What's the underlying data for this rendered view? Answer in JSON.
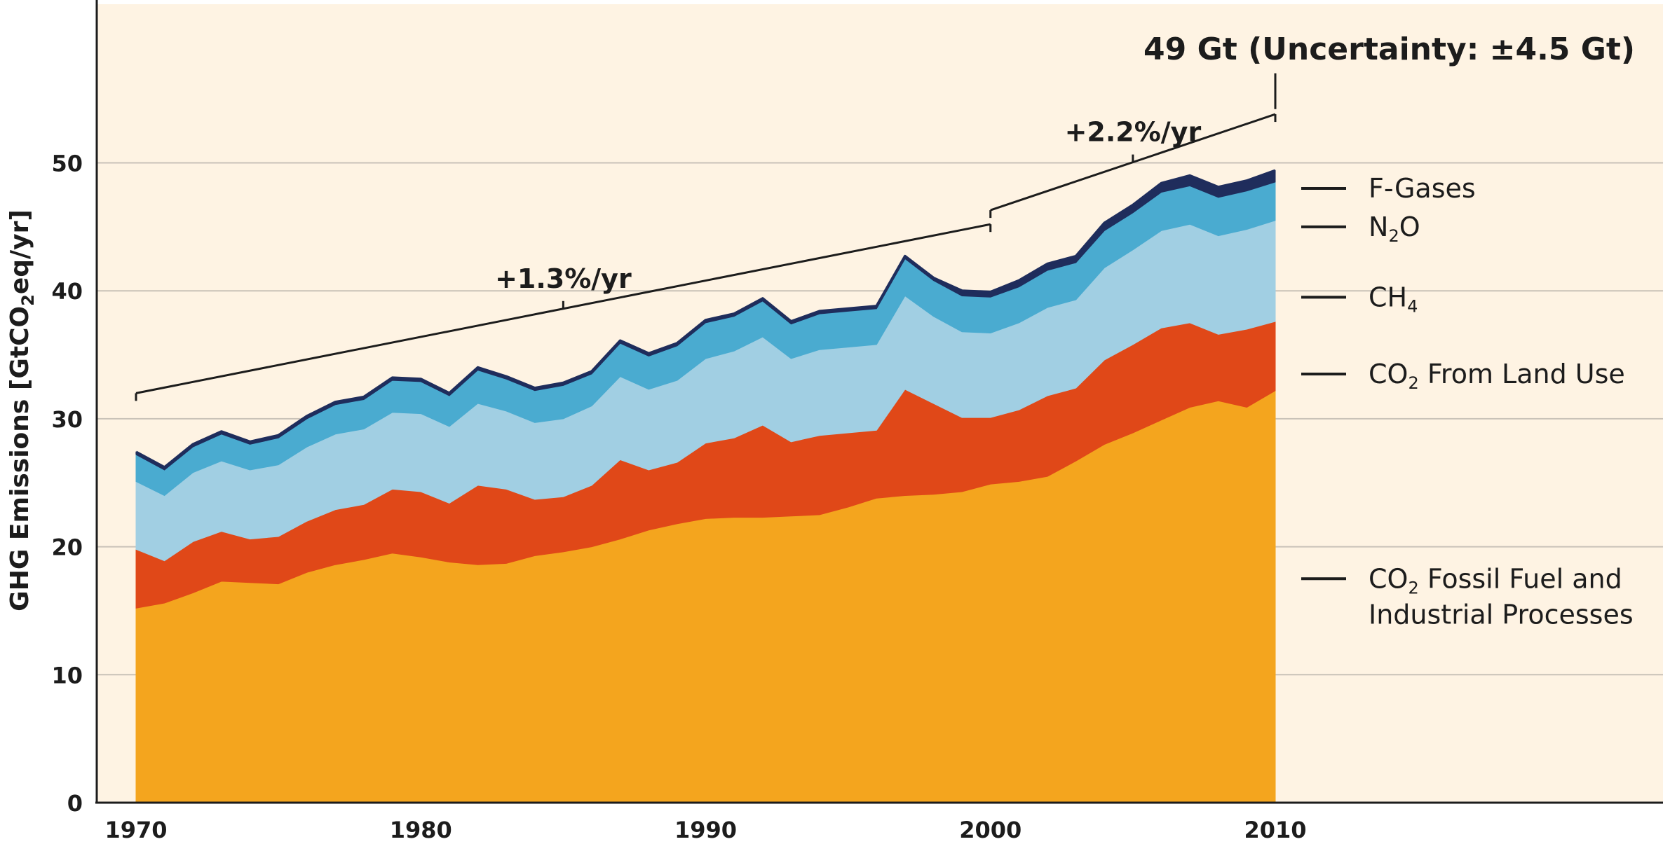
{
  "chart_data": {
    "type": "area",
    "stacked": true,
    "ylabel": "GHG Emissions [GtCO2eq/yr]",
    "ylabel_parts": {
      "before": "GHG Emissions [GtCO",
      "sub": "2",
      "after": "eq/yr]"
    },
    "xlim": [
      1970,
      2010
    ],
    "ylim": [
      0,
      60
    ],
    "x_ticks": [
      1970,
      1980,
      1990,
      2000,
      2010
    ],
    "y_ticks": [
      0,
      10,
      20,
      30,
      40,
      50
    ],
    "grid": "horizontal",
    "legend_placement": "right",
    "x": [
      1970,
      1971,
      1972,
      1973,
      1974,
      1975,
      1976,
      1977,
      1978,
      1979,
      1980,
      1981,
      1982,
      1983,
      1984,
      1985,
      1986,
      1987,
      1988,
      1989,
      1990,
      1991,
      1992,
      1993,
      1994,
      1995,
      1996,
      1997,
      1998,
      1999,
      2000,
      2001,
      2002,
      2003,
      2004,
      2005,
      2006,
      2007,
      2008,
      2009,
      2010
    ],
    "series": [
      {
        "name": "CO2 Fossil Fuel and Industrial Processes",
        "color": "#f4a51e",
        "values": [
          15.2,
          15.6,
          16.4,
          17.3,
          17.2,
          17.1,
          18.0,
          18.6,
          19.0,
          19.5,
          19.2,
          18.8,
          18.6,
          18.7,
          19.3,
          19.6,
          20.0,
          20.6,
          21.3,
          21.8,
          22.2,
          22.3,
          22.3,
          22.4,
          22.5,
          23.1,
          23.8,
          24.0,
          24.1,
          24.3,
          24.9,
          25.1,
          25.5,
          26.7,
          28.0,
          28.9,
          29.9,
          30.9,
          31.4,
          30.9,
          32.2
        ]
      },
      {
        "name": "CO2 From Land Use",
        "color": "#e04818",
        "values": [
          4.6,
          3.3,
          4.0,
          3.9,
          3.4,
          3.7,
          4.0,
          4.3,
          4.3,
          5.0,
          5.1,
          4.6,
          6.2,
          5.8,
          4.4,
          4.3,
          4.8,
          6.2,
          4.7,
          4.8,
          5.9,
          6.2,
          7.2,
          5.8,
          6.2,
          5.8,
          5.3,
          8.3,
          7.1,
          5.8,
          5.2,
          5.6,
          6.3,
          5.7,
          6.6,
          6.9,
          7.2,
          6.6,
          5.2,
          6.1,
          5.4
        ]
      },
      {
        "name": "CH4",
        "color": "#a1cfe3",
        "values": [
          5.3,
          5.1,
          5.4,
          5.5,
          5.4,
          5.6,
          5.8,
          5.9,
          5.9,
          6.0,
          6.1,
          6.0,
          6.4,
          6.1,
          6.0,
          6.1,
          6.2,
          6.5,
          6.3,
          6.4,
          6.6,
          6.8,
          6.9,
          6.5,
          6.7,
          6.7,
          6.7,
          7.3,
          6.8,
          6.7,
          6.6,
          6.8,
          6.9,
          6.9,
          7.2,
          7.4,
          7.6,
          7.7,
          7.7,
          7.8,
          7.9
        ]
      },
      {
        "name": "N2O",
        "color": "#4aabd0",
        "values": [
          2.1,
          2.0,
          2.0,
          2.1,
          2.0,
          2.1,
          2.2,
          2.3,
          2.3,
          2.5,
          2.5,
          2.4,
          2.6,
          2.5,
          2.5,
          2.6,
          2.5,
          2.6,
          2.6,
          2.7,
          2.8,
          2.7,
          2.8,
          2.7,
          2.8,
          2.8,
          2.8,
          2.9,
          2.8,
          2.8,
          2.8,
          2.8,
          2.9,
          2.9,
          2.9,
          2.9,
          3.0,
          3.0,
          3.0,
          3.0,
          3.0
        ]
      },
      {
        "name": "F-Gases",
        "color": "#1f2d5c",
        "values": [
          0.2,
          0.2,
          0.2,
          0.2,
          0.2,
          0.2,
          0.2,
          0.2,
          0.2,
          0.2,
          0.2,
          0.2,
          0.2,
          0.2,
          0.2,
          0.2,
          0.2,
          0.2,
          0.2,
          0.2,
          0.2,
          0.2,
          0.2,
          0.2,
          0.2,
          0.2,
          0.2,
          0.2,
          0.2,
          0.4,
          0.4,
          0.5,
          0.5,
          0.5,
          0.6,
          0.6,
          0.7,
          0.8,
          0.8,
          0.8,
          0.9
        ]
      }
    ],
    "legend": [
      {
        "name_parts": {
          "before": "F-Gases",
          "sub": "",
          "after": ""
        },
        "y": 48
      },
      {
        "name_parts": {
          "before": "N",
          "sub": "2",
          "after": "O"
        },
        "y": 45
      },
      {
        "name_parts": {
          "before": "CH",
          "sub": "4",
          "after": ""
        },
        "y": 39.5
      },
      {
        "name_parts": {
          "before": "CO",
          "sub": "2",
          "after": " From Land Use"
        },
        "y": 33.5
      },
      {
        "name_parts": {
          "before": "CO",
          "sub": "2",
          "after": " Fossil Fuel and"
        },
        "line2": "Industrial Processes",
        "y": 17.5
      }
    ],
    "annotations": {
      "growth_1": {
        "label": "+1.3%/yr",
        "from": 1970,
        "to": 2000,
        "y_from": 32,
        "y_to": 45.2
      },
      "growth_2": {
        "label": "+2.2%/yr",
        "from": 2000,
        "to": 2010,
        "y_from": 46.3,
        "y_to": 53.8
      },
      "total": {
        "label": "49 Gt (Uncertainty: ±4.5 Gt)",
        "year": 2010,
        "line_top": 57,
        "line_bottom": 54.2
      }
    }
  }
}
